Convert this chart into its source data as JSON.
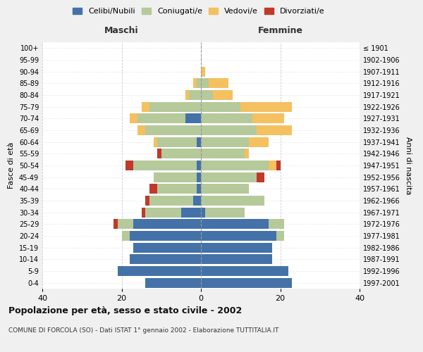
{
  "age_groups": [
    "0-4",
    "5-9",
    "10-14",
    "15-19",
    "20-24",
    "25-29",
    "30-34",
    "35-39",
    "40-44",
    "45-49",
    "50-54",
    "55-59",
    "60-64",
    "65-69",
    "70-74",
    "75-79",
    "80-84",
    "85-89",
    "90-94",
    "95-99",
    "100+"
  ],
  "birth_years": [
    "1997-2001",
    "1992-1996",
    "1987-1991",
    "1982-1986",
    "1977-1981",
    "1972-1976",
    "1967-1971",
    "1962-1966",
    "1957-1961",
    "1952-1956",
    "1947-1951",
    "1942-1946",
    "1937-1941",
    "1932-1936",
    "1927-1931",
    "1922-1926",
    "1917-1921",
    "1912-1916",
    "1907-1911",
    "1902-1906",
    "≤ 1901"
  ],
  "males": {
    "celibi": [
      14,
      21,
      18,
      17,
      18,
      17,
      5,
      2,
      1,
      1,
      1,
      0,
      1,
      0,
      4,
      0,
      0,
      0,
      0,
      0,
      0
    ],
    "coniugati": [
      0,
      0,
      0,
      0,
      2,
      4,
      9,
      11,
      10,
      11,
      16,
      10,
      10,
      14,
      12,
      13,
      3,
      1,
      0,
      0,
      0
    ],
    "vedovi": [
      0,
      0,
      0,
      0,
      0,
      0,
      0,
      0,
      0,
      0,
      0,
      0,
      1,
      2,
      2,
      2,
      1,
      1,
      0,
      0,
      0
    ],
    "divorziati": [
      0,
      0,
      0,
      0,
      0,
      1,
      1,
      1,
      2,
      0,
      2,
      1,
      0,
      0,
      0,
      0,
      0,
      0,
      0,
      0,
      0
    ]
  },
  "females": {
    "nubili": [
      23,
      22,
      18,
      18,
      19,
      17,
      1,
      0,
      0,
      0,
      0,
      0,
      0,
      0,
      0,
      0,
      0,
      0,
      0,
      0,
      0
    ],
    "coniugate": [
      0,
      0,
      0,
      0,
      2,
      4,
      10,
      16,
      12,
      14,
      17,
      11,
      12,
      14,
      13,
      10,
      3,
      2,
      0,
      0,
      0
    ],
    "vedove": [
      0,
      0,
      0,
      0,
      0,
      0,
      0,
      0,
      0,
      0,
      2,
      1,
      5,
      9,
      8,
      13,
      5,
      5,
      1,
      0,
      0
    ],
    "divorziate": [
      0,
      0,
      0,
      0,
      0,
      0,
      0,
      0,
      0,
      2,
      1,
      0,
      0,
      0,
      0,
      0,
      0,
      0,
      0,
      0,
      0
    ]
  },
  "colors": {
    "celibi_nubili": "#4472a8",
    "coniugati": "#b5c99a",
    "vedovi": "#f5c060",
    "divorziati": "#c0392b"
  },
  "title": "Popolazione per età, sesso e stato civile - 2002",
  "subtitle": "COMUNE DI FORCOLA (SO) - Dati ISTAT 1° gennaio 2002 - Elaborazione TUTTITALIA.IT",
  "xlabel_left": "Maschi",
  "xlabel_right": "Femmine",
  "ylabel_left": "Fasce di età",
  "ylabel_right": "Anni di nascita",
  "xlim": 40,
  "background_color": "#f0f0f0",
  "plot_bg": "#ffffff"
}
